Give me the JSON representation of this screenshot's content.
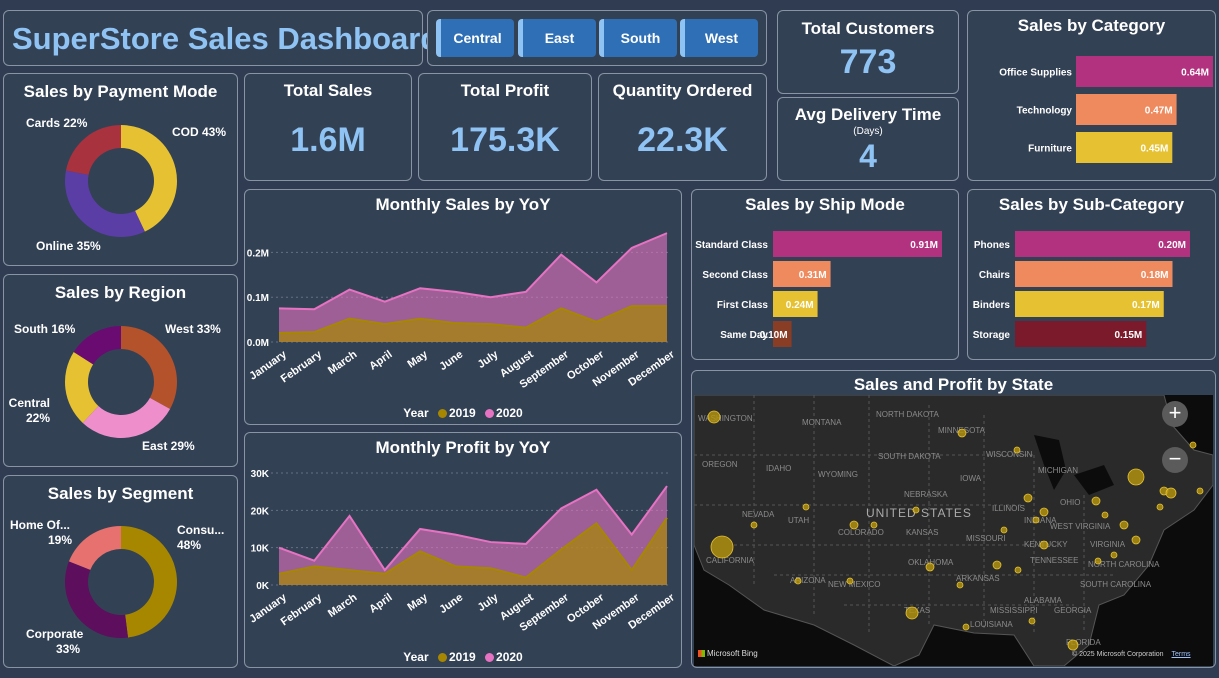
{
  "title": "SuperStore Sales Dashboard",
  "slicer": [
    "Central",
    "East",
    "South",
    "West"
  ],
  "kpis": {
    "total_customers": {
      "label": "Total Customers",
      "value": "773"
    },
    "total_sales": {
      "label": "Total Sales",
      "value": "1.6M"
    },
    "total_profit": {
      "label": "Total Profit",
      "value": "175.3K"
    },
    "quantity": {
      "label": "Quantity Ordered",
      "value": "22.3K"
    },
    "delivery": {
      "label": "Avg Delivery Time",
      "sub": "(Days)",
      "value": "4"
    }
  },
  "payment": {
    "title": "Sales by Payment Mode",
    "slices": [
      {
        "label": "COD",
        "pct": "43%",
        "value": 43,
        "color": "#e6c233"
      },
      {
        "label": "Online",
        "pct": "35%",
        "value": 35,
        "color": "#5a3ea6"
      },
      {
        "label": "Cards",
        "pct": "22%",
        "value": 22,
        "color": "#a8323e"
      }
    ]
  },
  "region": {
    "title": "Sales by Region",
    "slices": [
      {
        "label": "West",
        "pct": "33%",
        "value": 33,
        "color": "#b4522b"
      },
      {
        "label": "East",
        "pct": "29%",
        "value": 29,
        "color": "#ee8fcc"
      },
      {
        "label": "Central",
        "pct": "22%",
        "value": 22,
        "color": "#e6c233"
      },
      {
        "label": "South",
        "pct": "16%",
        "value": 16,
        "color": "#6a0b72"
      }
    ]
  },
  "segment": {
    "title": "Sales by Segment",
    "slices": [
      {
        "label": "Consu...",
        "pct": "48%",
        "value": 48,
        "color": "#a88700"
      },
      {
        "label": "Corporate",
        "pct": "33%",
        "value": 33,
        "color": "#5d0e5d"
      },
      {
        "label": "Home Of...",
        "pct": "19%",
        "value": 19,
        "color": "#e6716f"
      }
    ]
  },
  "category": {
    "title": "Sales by Category",
    "bars": [
      {
        "label": "Office Supplies",
        "value": 0.64,
        "text": "0.64M",
        "color": "#b3327f"
      },
      {
        "label": "Technology",
        "value": 0.47,
        "text": "0.47M",
        "color": "#ee8a5e"
      },
      {
        "label": "Furniture",
        "value": 0.45,
        "text": "0.45M",
        "color": "#e6c233"
      }
    ]
  },
  "shipmode": {
    "title": "Sales by Ship Mode",
    "bars": [
      {
        "label": "Standard Class",
        "value": 0.91,
        "text": "0.91M",
        "color": "#b3327f"
      },
      {
        "label": "Second Class",
        "value": 0.31,
        "text": "0.31M",
        "color": "#ee8a5e"
      },
      {
        "label": "First Class",
        "value": 0.24,
        "text": "0.24M",
        "color": "#e6c233"
      },
      {
        "label": "Same Day",
        "value": 0.1,
        "text": "0.10M",
        "color": "#8a3d25"
      }
    ]
  },
  "subcategory": {
    "title": "Sales by Sub-Category",
    "bars": [
      {
        "label": "Phones",
        "value": 0.2,
        "text": "0.20M",
        "color": "#b3327f"
      },
      {
        "label": "Chairs",
        "value": 0.18,
        "text": "0.18M",
        "color": "#ee8a5e"
      },
      {
        "label": "Binders",
        "value": 0.17,
        "text": "0.17M",
        "color": "#e6c233"
      },
      {
        "label": "Storage",
        "value": 0.15,
        "text": "0.15M",
        "color": "#7a1a2a"
      }
    ]
  },
  "chart_data": [
    {
      "type": "area",
      "title": "Monthly Sales by YoY",
      "categories": [
        "January",
        "February",
        "March",
        "April",
        "May",
        "June",
        "July",
        "August",
        "September",
        "October",
        "November",
        "December"
      ],
      "yticks": [
        "0.0M",
        "0.1M",
        "0.2M"
      ],
      "ylim": [
        0,
        0.25
      ],
      "legend_title": "Year",
      "series": [
        {
          "name": "2019",
          "color": "#a88700",
          "values": [
            0.02,
            0.022,
            0.052,
            0.04,
            0.052,
            0.042,
            0.04,
            0.032,
            0.075,
            0.045,
            0.08,
            0.08
          ]
        },
        {
          "name": "2020",
          "color": "#e673c2",
          "values": [
            0.075,
            0.073,
            0.117,
            0.09,
            0.12,
            0.112,
            0.1,
            0.112,
            0.195,
            0.133,
            0.21,
            0.243
          ]
        }
      ]
    },
    {
      "type": "area",
      "title": "Monthly Profit by YoY",
      "categories": [
        "January",
        "February",
        "March",
        "April",
        "May",
        "June",
        "July",
        "August",
        "September",
        "October",
        "November",
        "December"
      ],
      "yticks": [
        "0K",
        "10K",
        "20K",
        "30K"
      ],
      "ylim": [
        0,
        30000
      ],
      "legend_title": "Year",
      "series": [
        {
          "name": "2019",
          "color": "#a88700",
          "values": [
            3000,
            5000,
            4000,
            3000,
            9000,
            5000,
            4500,
            2000,
            9500,
            16500,
            4000,
            18000
          ]
        },
        {
          "name": "2020",
          "color": "#e673c2",
          "values": [
            10000,
            6500,
            18500,
            4000,
            15000,
            13500,
            11500,
            11000,
            20500,
            25500,
            13500,
            26500
          ]
        }
      ]
    }
  ],
  "map": {
    "title": "Sales and Profit by State",
    "country": "UNITED STATES",
    "states": [
      "WASHINGTON",
      "MONTANA",
      "NORTH DAKOTA",
      "MINNESOTA",
      "OREGON",
      "IDAHO",
      "SOUTH DAKOTA",
      "WISCONSIN",
      "MICHIGAN",
      "WYOMING",
      "IOWA",
      "NEBRASKA",
      "NEVADA",
      "UTAH",
      "COLORADO",
      "KANSAS",
      "MISSOURI",
      "ILLINOIS",
      "INDIANA",
      "OHIO",
      "CALIFORNIA",
      "KENTUCKY",
      "WEST VIRGINIA",
      "VIRGINIA",
      "TENNESSEE",
      "OKLAHOMA",
      "ARKANSAS",
      "ARIZONA",
      "NEW MEXICO",
      "NORTH CAROLINA",
      "SOUTH CAROLINA",
      "MISSISSIPPI",
      "ALABAMA",
      "GEORGIA",
      "TEXAS",
      "LOUISIANA",
      "FLORIDA"
    ],
    "bing_label": "Microsoft Bing",
    "copyright": "© 2025 Microsoft Corporation",
    "terms": "Terms",
    "zoom_in": "+",
    "zoom_out": "−"
  }
}
